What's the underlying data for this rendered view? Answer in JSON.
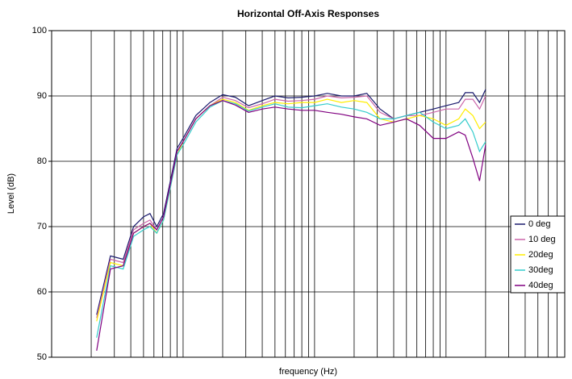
{
  "chart_data": {
    "type": "line",
    "title": "Horizontal Off-Axis Responses",
    "x_label": "frequency (Hz)",
    "y_label": "Level (dB)",
    "x": [
      22,
      28,
      35,
      42,
      50,
      56,
      63,
      71,
      80,
      90,
      100,
      125,
      160,
      200,
      250,
      315,
      400,
      500,
      630,
      800,
      1000,
      1250,
      1600,
      2000,
      2500,
      3150,
      4000,
      5000,
      6300,
      8000,
      10000,
      12500,
      14000,
      16000,
      18000,
      20000
    ],
    "series": [
      {
        "name": "0 deg",
        "color": "#1a1a6e",
        "values": [
          56.5,
          65.5,
          65,
          70,
          71.5,
          72,
          70,
          72,
          77,
          82,
          83.5,
          87,
          89,
          90.2,
          89.8,
          88.5,
          89.3,
          90,
          89.7,
          89.8,
          90,
          90.4,
          90,
          90,
          90.4,
          88,
          86.5,
          87,
          87.5,
          88,
          88.5,
          89,
          90.5,
          90.5,
          89,
          91
        ]
      },
      {
        "name": "10 deg",
        "color": "#cc66aa",
        "values": [
          56,
          65,
          64.5,
          69.5,
          70.5,
          71,
          69.5,
          71.5,
          76.5,
          81.5,
          83,
          86.5,
          88.5,
          89.8,
          89.3,
          88.2,
          88.8,
          89.5,
          89.2,
          89.3,
          89.5,
          90,
          89.7,
          89.8,
          90,
          87.5,
          86.5,
          87,
          87,
          87.5,
          88,
          88,
          89.5,
          89.5,
          88,
          90
        ]
      },
      {
        "name": "20deg",
        "color": "#ffee00",
        "values": [
          55.5,
          64.5,
          64,
          69,
          70,
          70.5,
          69,
          71,
          76,
          81,
          83,
          86.5,
          88.5,
          89.5,
          89,
          87.8,
          88.5,
          89,
          88.8,
          89,
          89,
          89.5,
          89,
          89.3,
          89,
          86.5,
          86,
          86.5,
          87,
          86.5,
          85.5,
          86.5,
          88,
          87,
          85,
          86
        ]
      },
      {
        "name": "30deg",
        "color": "#33cccc",
        "values": [
          53,
          64,
          63.5,
          68.5,
          69.5,
          70,
          69,
          71,
          76,
          81,
          82.5,
          86,
          88.3,
          89.3,
          88.8,
          87.7,
          88.3,
          88.8,
          88.3,
          88.2,
          88.5,
          88.8,
          88.3,
          88,
          87.5,
          86.5,
          86.5,
          87,
          87.5,
          86,
          85,
          85.5,
          86.5,
          84.5,
          81.5,
          83
        ]
      },
      {
        "name": "40deg",
        "color": "#800080",
        "values": [
          51,
          63.5,
          64,
          69,
          70,
          70.5,
          69.5,
          71.5,
          76.5,
          81.5,
          83,
          86.5,
          88.5,
          89.3,
          88.6,
          87.5,
          88,
          88.3,
          88,
          87.8,
          87.8,
          87.5,
          87.2,
          86.8,
          86.5,
          85.5,
          86,
          86.5,
          85.5,
          83.5,
          83.5,
          84.5,
          84,
          80.5,
          77,
          82.5
        ]
      }
    ],
    "xscale": "log",
    "xlim": [
      10,
      80000
    ],
    "xticks": [
      20,
      30,
      40,
      50,
      60,
      70,
      80,
      90,
      100,
      200,
      300,
      400,
      500,
      600,
      700,
      800,
      900,
      1000,
      2000,
      3000,
      4000,
      5000,
      6000,
      7000,
      8000,
      9000,
      10000,
      20000,
      30000,
      40000,
      50000,
      60000,
      70000
    ],
    "ylim": [
      50,
      100
    ],
    "yticks": [
      50,
      60,
      70,
      80,
      90,
      100
    ],
    "grid": true,
    "legend": "right"
  }
}
